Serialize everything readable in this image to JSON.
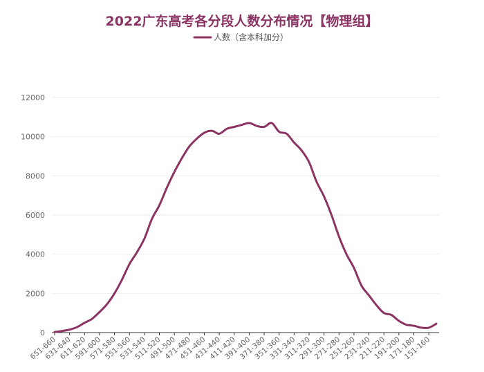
{
  "colors": {
    "series": "#8b3463",
    "title": "#8b3463",
    "grid": "#eeeeee",
    "axis": "#333333",
    "tick_text": "#666666"
  },
  "chart_data": {
    "type": "line",
    "title": "2022广东高考各分段人数分布情况【物理组】",
    "xlabel": "",
    "ylabel": "",
    "ylim": [
      0,
      12000
    ],
    "yticks": [
      0,
      2000,
      4000,
      6000,
      8000,
      10000,
      12000
    ],
    "grid": true,
    "legend_position": "top-center",
    "categories": [
      "651-660",
      "641-650",
      "631-640",
      "621-630",
      "611-620",
      "601-610",
      "591-600",
      "581-590",
      "571-580",
      "561-570",
      "551-560",
      "541-550",
      "531-540",
      "521-530",
      "511-520",
      "501-510",
      "491-500",
      "481-490",
      "471-480",
      "461-470",
      "451-460",
      "441-450",
      "431-440",
      "421-430",
      "411-420",
      "401-410",
      "391-400",
      "381-390",
      "371-380",
      "361-370",
      "351-360",
      "341-350",
      "331-340",
      "321-330",
      "311-320",
      "301-310",
      "291-300",
      "281-290",
      "271-280",
      "261-270",
      "251-260",
      "241-250",
      "231-240",
      "221-230",
      "211-220",
      "201-210",
      "191-200",
      "181-190",
      "171-180",
      "161-170",
      "151-160",
      "141-150"
    ],
    "x_tick_labels": [
      "651-660",
      "631-640",
      "611-620",
      "591-600",
      "571-580",
      "551-560",
      "531-540",
      "511-520",
      "491-500",
      "471-480",
      "451-460",
      "431-440",
      "411-420",
      "391-400",
      "371-380",
      "351-360",
      "331-340",
      "311-320",
      "291-300",
      "271-280",
      "251-260",
      "231-240",
      "211-220",
      "191-200",
      "171-180",
      "151-160"
    ],
    "series": [
      {
        "name": "人数（含本科加分）",
        "values": [
          30,
          80,
          150,
          280,
          500,
          700,
          1050,
          1450,
          2000,
          2700,
          3500,
          4100,
          4800,
          5800,
          6500,
          7400,
          8200,
          8900,
          9500,
          9900,
          10200,
          10300,
          10150,
          10400,
          10500,
          10600,
          10700,
          10550,
          10500,
          10700,
          10250,
          10150,
          9700,
          9300,
          8700,
          7700,
          6950,
          6000,
          4900,
          4000,
          3300,
          2400,
          1900,
          1400,
          1000,
          900,
          600,
          400,
          350,
          250,
          250,
          450
        ]
      }
    ]
  }
}
